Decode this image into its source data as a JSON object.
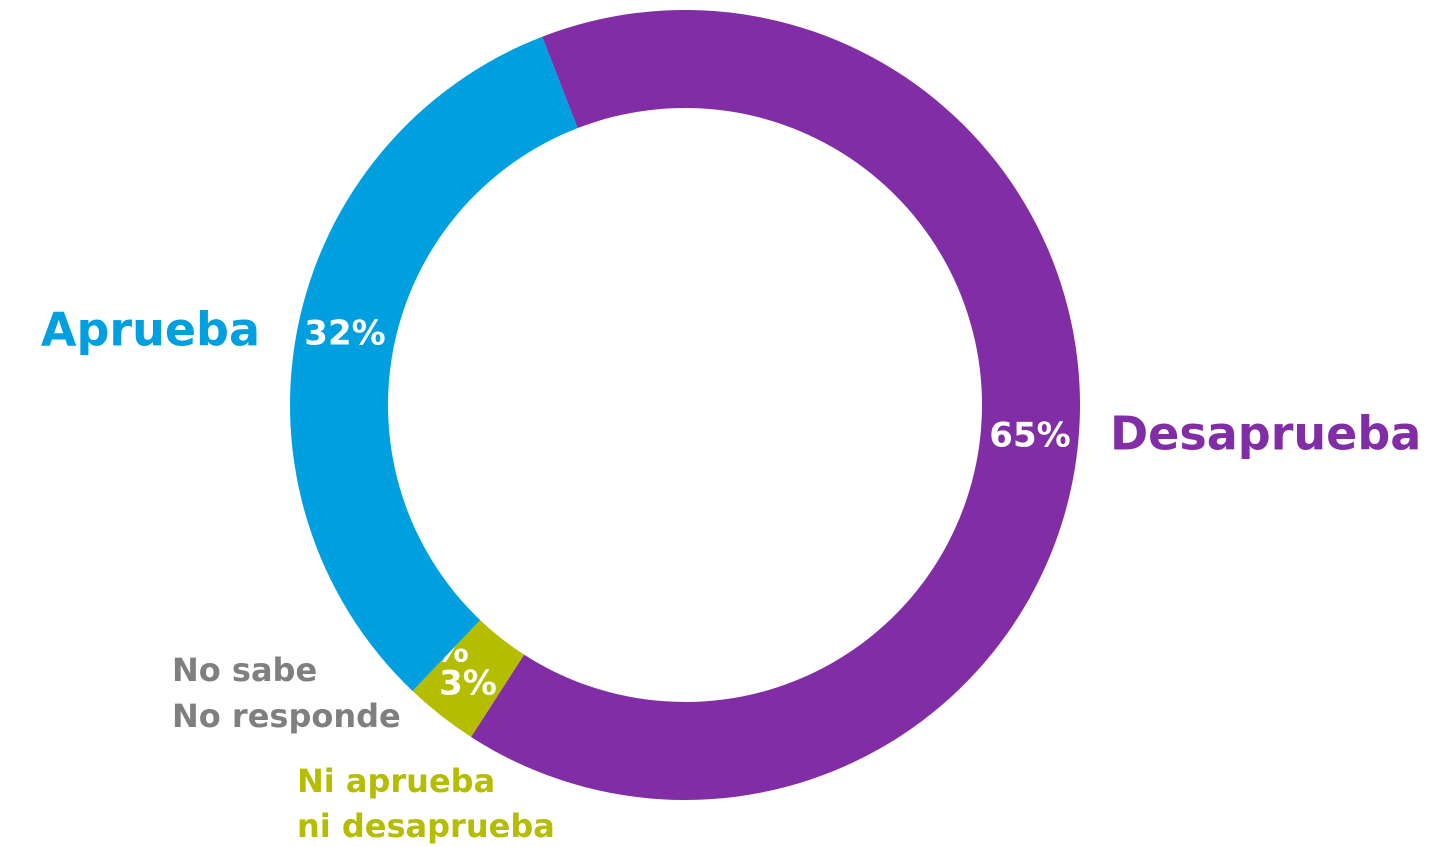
{
  "chart_data": {
    "type": "donut",
    "categories": [
      "Desaprueba",
      "Ni aprueba\nni desaprueba",
      "No sabe\nNo responde",
      "Aprueba"
    ],
    "values": [
      65,
      3,
      0,
      32
    ],
    "value_labels": [
      "65%",
      "3%",
      "0%",
      "32%"
    ],
    "colors": [
      "#812ea6",
      "#b5bd00",
      "#7f7f7f",
      "#009fe0"
    ]
  }
}
